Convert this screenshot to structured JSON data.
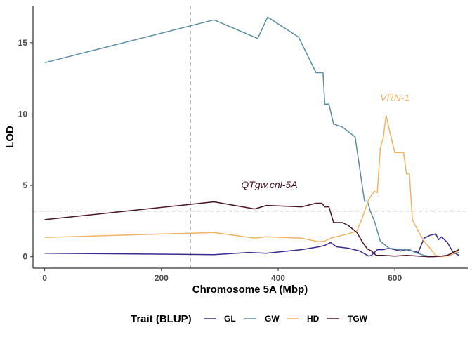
{
  "chart_data": {
    "type": "line",
    "title": "",
    "xlabel": "Chromosome 5A (Mbp)",
    "ylabel": "LOD",
    "xlim": [
      -20,
      725
    ],
    "ylim": [
      -0.8,
      17.6
    ],
    "xticks": [
      0,
      200,
      400,
      600
    ],
    "yticks": [
      0,
      5,
      10,
      15
    ],
    "grid": false,
    "legend": {
      "title": "Trait (BLUP)",
      "position": "bottom"
    },
    "threshold_lod": 3.2,
    "vline_x": 250,
    "series": [
      {
        "name": "GL",
        "color": "#3b2a8c",
        "points": [
          [
            0,
            0.25
          ],
          [
            290,
            0.15
          ],
          [
            350,
            0.3
          ],
          [
            380,
            0.25
          ],
          [
            440,
            0.5
          ],
          [
            470,
            0.7
          ],
          [
            480,
            0.8
          ],
          [
            490,
            1.0
          ],
          [
            500,
            0.7
          ],
          [
            520,
            0.6
          ],
          [
            540,
            0.4
          ],
          [
            555,
            0.05
          ],
          [
            560,
            0.1
          ],
          [
            570,
            0.5
          ],
          [
            580,
            0.5
          ],
          [
            590,
            0.6
          ],
          [
            600,
            0.5
          ],
          [
            610,
            0.4
          ],
          [
            620,
            0.5
          ],
          [
            625,
            0.45
          ],
          [
            640,
            0.3
          ],
          [
            650,
            1.3
          ],
          [
            660,
            1.5
          ],
          [
            670,
            1.6
          ],
          [
            675,
            1.2
          ],
          [
            680,
            1.4
          ],
          [
            690,
            1.0
          ],
          [
            700,
            0.3
          ],
          [
            710,
            0.1
          ]
        ]
      },
      {
        "name": "GW",
        "color": "#5b8ea3",
        "points": [
          [
            0,
            13.6
          ],
          [
            290,
            16.6
          ],
          [
            365,
            15.3
          ],
          [
            382,
            16.8
          ],
          [
            435,
            15.4
          ],
          [
            465,
            12.9
          ],
          [
            477,
            12.9
          ],
          [
            480,
            10.7
          ],
          [
            487,
            10.7
          ],
          [
            495,
            9.3
          ],
          [
            510,
            9.1
          ],
          [
            532,
            8.4
          ],
          [
            548,
            3.9
          ],
          [
            553,
            3.9
          ],
          [
            558,
            3.2
          ],
          [
            565,
            2.5
          ],
          [
            575,
            1.1
          ],
          [
            590,
            0.6
          ],
          [
            610,
            0.5
          ],
          [
            625,
            0.5
          ],
          [
            635,
            0.3
          ],
          [
            650,
            0.1
          ],
          [
            665,
            0.0
          ],
          [
            685,
            0.05
          ],
          [
            710,
            0.3
          ]
        ]
      },
      {
        "name": "HD",
        "color": "#f0b464",
        "points": [
          [
            0,
            1.35
          ],
          [
            290,
            1.7
          ],
          [
            360,
            1.3
          ],
          [
            380,
            1.4
          ],
          [
            440,
            1.3
          ],
          [
            470,
            1.05
          ],
          [
            480,
            1.1
          ],
          [
            490,
            1.3
          ],
          [
            520,
            1.6
          ],
          [
            535,
            1.8
          ],
          [
            545,
            2.8
          ],
          [
            555,
            4.0
          ],
          [
            560,
            4.3
          ],
          [
            565,
            4.6
          ],
          [
            570,
            4.5
          ],
          [
            575,
            7.6
          ],
          [
            580,
            8.3
          ],
          [
            585,
            9.9
          ],
          [
            590,
            9.0
          ],
          [
            600,
            7.3
          ],
          [
            608,
            7.3
          ],
          [
            615,
            7.3
          ],
          [
            620,
            5.8
          ],
          [
            625,
            5.8
          ],
          [
            630,
            2.6
          ],
          [
            640,
            1.8
          ],
          [
            650,
            1.1
          ],
          [
            660,
            0.6
          ],
          [
            670,
            0.1
          ],
          [
            680,
            0.0
          ],
          [
            695,
            0.1
          ],
          [
            710,
            0.45
          ]
        ]
      },
      {
        "name": "TGW",
        "color": "#4a1528",
        "points": [
          [
            0,
            2.6
          ],
          [
            290,
            3.85
          ],
          [
            360,
            3.35
          ],
          [
            380,
            3.6
          ],
          [
            440,
            3.5
          ],
          [
            465,
            3.75
          ],
          [
            475,
            3.75
          ],
          [
            480,
            3.5
          ],
          [
            487,
            3.5
          ],
          [
            495,
            2.4
          ],
          [
            510,
            2.4
          ],
          [
            520,
            2.2
          ],
          [
            535,
            1.7
          ],
          [
            545,
            1.0
          ],
          [
            553,
            0.55
          ],
          [
            560,
            0.4
          ],
          [
            568,
            0.1
          ],
          [
            580,
            0.1
          ],
          [
            600,
            0.05
          ],
          [
            620,
            0.1
          ],
          [
            640,
            0.05
          ],
          [
            660,
            0.0
          ],
          [
            680,
            0.05
          ],
          [
            690,
            0.1
          ],
          [
            700,
            0.3
          ],
          [
            710,
            0.5
          ]
        ]
      }
    ],
    "annotations": [
      {
        "text": "QTgw.cnl-5A",
        "x": 385,
        "y": 4.8,
        "color": "#4a1528"
      },
      {
        "text": "VRN-1",
        "x": 600,
        "y": 10.9,
        "color": "#f0b464"
      }
    ]
  }
}
